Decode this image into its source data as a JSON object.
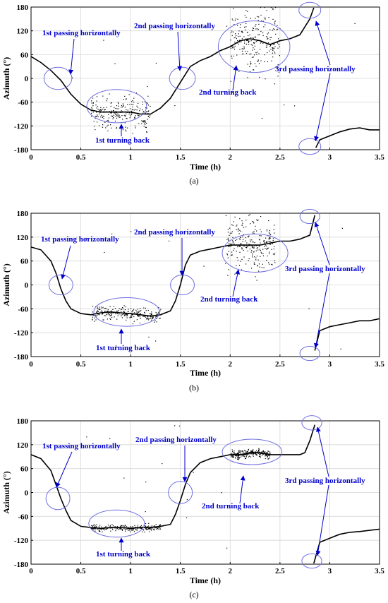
{
  "chart_data": [
    {
      "type": "scatter",
      "caption": "(a)",
      "xlabel": "Time (h)",
      "ylabel": "Azimuth (°)",
      "xlim": [
        0,
        3.5
      ],
      "ylim": [
        -180,
        180
      ],
      "xticks": [
        "0",
        "0.5",
        "1",
        "1.5",
        "2",
        "2.5",
        "3",
        "3.5"
      ],
      "yticks": [
        "180",
        "120",
        "60",
        "0",
        "-60",
        "-120",
        "-180"
      ],
      "grid": true,
      "series_color": "#000000",
      "trend": [
        [
          0,
          55
        ],
        [
          0.1,
          40
        ],
        [
          0.2,
          20
        ],
        [
          0.3,
          -5
        ],
        [
          0.4,
          -40
        ],
        [
          0.5,
          -65
        ],
        [
          0.6,
          -80
        ],
        [
          0.7,
          -85
        ],
        [
          0.8,
          -85
        ],
        [
          0.9,
          -85
        ],
        [
          1.0,
          -85
        ],
        [
          1.1,
          -90
        ],
        [
          1.2,
          -90
        ],
        [
          1.3,
          -75
        ],
        [
          1.4,
          -50
        ],
        [
          1.5,
          -10
        ],
        [
          1.6,
          30
        ],
        [
          1.7,
          45
        ],
        [
          1.8,
          55
        ],
        [
          1.9,
          70
        ],
        [
          2.0,
          80
        ],
        [
          2.1,
          95
        ],
        [
          2.2,
          100
        ],
        [
          2.3,
          95
        ],
        [
          2.4,
          85
        ],
        [
          2.5,
          95
        ],
        [
          2.6,
          100
        ],
        [
          2.7,
          110
        ],
        [
          2.8,
          150
        ],
        [
          2.84,
          178
        ]
      ],
      "trend2": [
        [
          2.86,
          -175
        ],
        [
          2.9,
          -155
        ],
        [
          3.0,
          -145
        ],
        [
          3.1,
          -135
        ],
        [
          3.2,
          -128
        ],
        [
          3.3,
          -125
        ],
        [
          3.4,
          -130
        ],
        [
          3.5,
          -130
        ]
      ],
      "noise_ranges": [
        [
          0.6,
          1.2,
          60
        ],
        [
          2.0,
          2.5,
          110
        ]
      ],
      "annotations": [
        {
          "text": "1st passing horizontally",
          "x": 0.18,
          "y": 100
        },
        {
          "text": "2nd passing horizontally",
          "x": 1.4,
          "y": 108
        },
        {
          "text": "2nd turning back",
          "x": 2.07,
          "y": -10
        },
        {
          "text": "3rd passing horizontally",
          "x": 2.65,
          "y": 20
        },
        {
          "text": "1st turning back",
          "x": 0.68,
          "y": -140
        }
      ],
      "ellipses": [
        [
          0.27,
          0,
          0.14,
          28
        ],
        [
          0.86,
          -70,
          0.3,
          42
        ],
        [
          1.52,
          0,
          0.13,
          28
        ],
        [
          2.24,
          80,
          0.36,
          65
        ],
        [
          2.8,
          172,
          0.11,
          20
        ],
        [
          2.8,
          -172,
          0.11,
          20
        ]
      ]
    },
    {
      "type": "scatter",
      "caption": "(b)",
      "xlabel": "Time (h)",
      "ylabel": "Azimuth (°)",
      "xlim": [
        0,
        3.5
      ],
      "ylim": [
        -180,
        180
      ],
      "xticks": [
        "0",
        "0.5",
        "1",
        "1.5",
        "2",
        "2.5",
        "3",
        "3.5"
      ],
      "yticks": [
        "180",
        "120",
        "60",
        "0",
        "-60",
        "-120",
        "-180"
      ],
      "grid": true,
      "series_color": "#000000",
      "trend": [
        [
          0,
          95
        ],
        [
          0.1,
          88
        ],
        [
          0.2,
          60
        ],
        [
          0.25,
          30
        ],
        [
          0.3,
          -10
        ],
        [
          0.35,
          -40
        ],
        [
          0.4,
          -60
        ],
        [
          0.5,
          -72
        ],
        [
          0.6,
          -75
        ],
        [
          0.7,
          -70
        ],
        [
          0.8,
          -68
        ],
        [
          0.9,
          -70
        ],
        [
          1.0,
          -72
        ],
        [
          1.1,
          -75
        ],
        [
          1.2,
          -78
        ],
        [
          1.3,
          -75
        ],
        [
          1.4,
          -65
        ],
        [
          1.45,
          -40
        ],
        [
          1.5,
          0
        ],
        [
          1.55,
          50
        ],
        [
          1.6,
          75
        ],
        [
          1.7,
          85
        ],
        [
          1.8,
          90
        ],
        [
          1.9,
          95
        ],
        [
          2.0,
          100
        ],
        [
          2.1,
          100
        ],
        [
          2.2,
          100
        ],
        [
          2.3,
          100
        ],
        [
          2.4,
          105
        ],
        [
          2.5,
          110
        ],
        [
          2.6,
          110
        ],
        [
          2.7,
          115
        ],
        [
          2.8,
          125
        ],
        [
          2.85,
          175
        ]
      ],
      "trend2": [
        [
          2.85,
          -165
        ],
        [
          2.9,
          -115
        ],
        [
          3.0,
          -105
        ],
        [
          3.1,
          -100
        ],
        [
          3.2,
          -95
        ],
        [
          3.3,
          -90
        ],
        [
          3.4,
          -90
        ],
        [
          3.5,
          -85
        ]
      ],
      "noise_ranges": [
        [
          0.6,
          1.3,
          25
        ],
        [
          1.95,
          2.45,
          90
        ]
      ],
      "annotations": [
        {
          "text": "1st passing horizontally",
          "x": 0.15,
          "y": 100
        },
        {
          "text": "2nd passing horizontally",
          "x": 1.42,
          "y": 120
        },
        {
          "text": "2nd turning back",
          "x": 2.14,
          "y": -40
        },
        {
          "text": "3rd passing horizontally",
          "x": 2.67,
          "y": 38
        },
        {
          "text": "1st turning back",
          "x": 0.68,
          "y": -155
        }
      ],
      "ellipses": [
        [
          0.3,
          0,
          0.12,
          25
        ],
        [
          0.96,
          -68,
          0.33,
          36
        ],
        [
          1.52,
          0,
          0.12,
          25
        ],
        [
          2.25,
          80,
          0.33,
          48
        ],
        [
          2.8,
          172,
          0.1,
          18
        ],
        [
          2.8,
          -172,
          0.1,
          18
        ]
      ]
    },
    {
      "type": "scatter",
      "caption": "(c)",
      "xlabel": "Time (h)",
      "ylabel": "Azimuth (°)",
      "xlim": [
        0,
        3.5
      ],
      "ylim": [
        -180,
        180
      ],
      "xticks": [
        "0",
        "0.5",
        "1",
        "1.5",
        "2",
        "2.5",
        "3",
        "3.5"
      ],
      "yticks": [
        "180",
        "120",
        "60",
        "0",
        "-60",
        "-120",
        "-180"
      ],
      "grid": true,
      "series_color": "#000000",
      "trend": [
        [
          0,
          95
        ],
        [
          0.1,
          85
        ],
        [
          0.2,
          55
        ],
        [
          0.25,
          20
        ],
        [
          0.3,
          -15
        ],
        [
          0.35,
          -45
        ],
        [
          0.4,
          -70
        ],
        [
          0.5,
          -85
        ],
        [
          0.6,
          -88
        ],
        [
          0.7,
          -90
        ],
        [
          0.8,
          -88
        ],
        [
          0.9,
          -88
        ],
        [
          1.0,
          -90
        ],
        [
          1.1,
          -88
        ],
        [
          1.2,
          -88
        ],
        [
          1.3,
          -85
        ],
        [
          1.4,
          -80
        ],
        [
          1.45,
          -55
        ],
        [
          1.5,
          -20
        ],
        [
          1.55,
          20
        ],
        [
          1.6,
          50
        ],
        [
          1.7,
          75
        ],
        [
          1.8,
          85
        ],
        [
          1.9,
          90
        ],
        [
          2.0,
          95
        ],
        [
          2.1,
          95
        ],
        [
          2.2,
          100
        ],
        [
          2.3,
          100
        ],
        [
          2.4,
          95
        ],
        [
          2.5,
          95
        ],
        [
          2.6,
          95
        ],
        [
          2.7,
          95
        ],
        [
          2.75,
          100
        ],
        [
          2.8,
          130
        ],
        [
          2.85,
          170
        ]
      ],
      "trend2": [
        [
          2.84,
          -178
        ],
        [
          2.9,
          -125
        ],
        [
          3.0,
          -115
        ],
        [
          3.1,
          -105
        ],
        [
          3.2,
          -100
        ],
        [
          3.3,
          -98
        ],
        [
          3.4,
          -95
        ],
        [
          3.5,
          -92
        ]
      ],
      "noise_ranges": [
        [
          0.6,
          1.3,
          12
        ],
        [
          2.0,
          2.4,
          15
        ]
      ],
      "annotations": [
        {
          "text": "1st passing horizontally",
          "x": 0.14,
          "y": 100
        },
        {
          "text": "2nd passing horizontally",
          "x": 1.43,
          "y": 148
        },
        {
          "text": "2nd turning back",
          "x": 2.0,
          "y": -40
        },
        {
          "text": "3rd passing horizontally",
          "x": 2.65,
          "y": -25
        },
        {
          "text": "1st turning back",
          "x": 0.68,
          "y": -150
        }
      ],
      "ellipses": [
        [
          0.27,
          -15,
          0.12,
          28
        ],
        [
          0.86,
          -78,
          0.28,
          34
        ],
        [
          1.5,
          0,
          0.12,
          28
        ],
        [
          2.22,
          102,
          0.3,
          32
        ],
        [
          2.82,
          175,
          0.1,
          18
        ],
        [
          2.82,
          -172,
          0.1,
          18
        ]
      ]
    }
  ]
}
